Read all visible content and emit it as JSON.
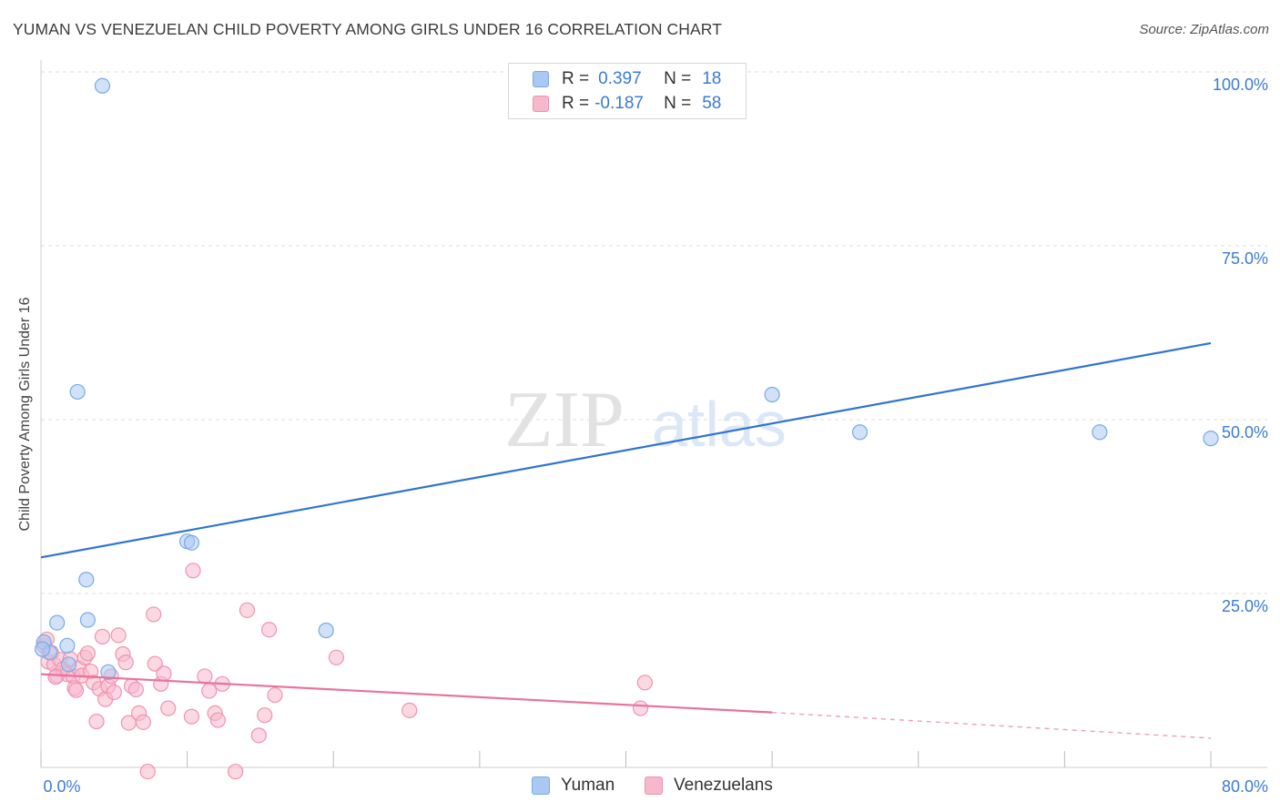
{
  "title": "YUMAN VS VENEZUELAN CHILD POVERTY AMONG GIRLS UNDER 16 CORRELATION CHART",
  "source": "Source: ZipAtlas.com",
  "watermark": {
    "zip": "ZIP",
    "atlas": "atlas"
  },
  "colors": {
    "yuman_fill": "#a9c8f2",
    "yuman_stroke": "#7aaae6",
    "yuman_line": "#2f74d0",
    "ven_fill": "#f7b8cb",
    "ven_stroke": "#ef93b1",
    "ven_line": "#e8739c",
    "tick_text": "#3a7bd5",
    "grid": "#dcdcdc"
  },
  "legend_top": {
    "rows": [
      {
        "r_label": "R =",
        "r_value": "0.397",
        "n_label": "N =",
        "n_value": "18"
      },
      {
        "r_label": "R =",
        "r_value": "-0.187",
        "n_label": "N =",
        "n_value": "58"
      }
    ]
  },
  "legend_bottom": {
    "yuman": "Yuman",
    "venezuelans": "Venezuelans"
  },
  "chart_data": {
    "type": "scatter",
    "title": "YUMAN VS VENEZUELAN CHILD POVERTY AMONG GIRLS UNDER 16 CORRELATION CHART",
    "xlabel": "",
    "ylabel": "Child Poverty Among Girls Under 16",
    "xlim": [
      0,
      80
    ],
    "ylim": [
      0,
      100
    ],
    "x_tick_labels": [
      "0.0%",
      "80.0%"
    ],
    "y_ticks": [
      25,
      50,
      75,
      100
    ],
    "y_tick_labels": [
      "25.0%",
      "50.0%",
      "75.0%",
      "100.0%"
    ],
    "grid": true,
    "series": [
      {
        "name": "Yuman",
        "points": [
          [
            4.2,
            98
          ],
          [
            2.5,
            54
          ],
          [
            3.1,
            27
          ],
          [
            10,
            32.5
          ],
          [
            10.3,
            32.3
          ],
          [
            1.1,
            20.8
          ],
          [
            3.2,
            21.2
          ],
          [
            1.8,
            17.5
          ],
          [
            0.2,
            18
          ],
          [
            0.6,
            16.5
          ],
          [
            1.9,
            14.8
          ],
          [
            4.6,
            13.7
          ],
          [
            19.5,
            19.7
          ],
          [
            50,
            53.6
          ],
          [
            56,
            48.2
          ],
          [
            72.4,
            48.2
          ],
          [
            80,
            47.3
          ],
          [
            0.1,
            17
          ]
        ],
        "trend": {
          "x": [
            0,
            80
          ],
          "y": [
            30.2,
            61
          ]
        }
      },
      {
        "name": "Venezuelans",
        "points": [
          [
            0.2,
            17.5
          ],
          [
            0.5,
            15.2
          ],
          [
            0.7,
            16.5
          ],
          [
            0.9,
            14.8
          ],
          [
            1.1,
            13.2
          ],
          [
            1.3,
            15.5
          ],
          [
            1.5,
            14.1
          ],
          [
            1.8,
            13.4
          ],
          [
            2.0,
            15.6
          ],
          [
            2.2,
            13.1
          ],
          [
            2.3,
            11.4
          ],
          [
            2.6,
            14.2
          ],
          [
            2.8,
            13.2
          ],
          [
            3.0,
            15.8
          ],
          [
            3.2,
            16.4
          ],
          [
            3.4,
            13.8
          ],
          [
            3.6,
            12.2
          ],
          [
            3.8,
            6.6
          ],
          [
            4.0,
            11.3
          ],
          [
            4.2,
            18.8
          ],
          [
            4.4,
            9.8
          ],
          [
            4.6,
            11.7
          ],
          [
            4.8,
            13.1
          ],
          [
            5.0,
            10.8
          ],
          [
            5.3,
            19.0
          ],
          [
            5.6,
            16.3
          ],
          [
            5.8,
            15.1
          ],
          [
            6.0,
            6.4
          ],
          [
            6.2,
            11.7
          ],
          [
            6.5,
            11.2
          ],
          [
            6.7,
            7.8
          ],
          [
            7.0,
            6.5
          ],
          [
            7.3,
            -0.6
          ],
          [
            7.7,
            22.0
          ],
          [
            7.8,
            14.9
          ],
          [
            8.2,
            12.0
          ],
          [
            8.4,
            13.5
          ],
          [
            8.7,
            8.5
          ],
          [
            10.4,
            28.3
          ],
          [
            10.3,
            7.3
          ],
          [
            11.2,
            13.1
          ],
          [
            11.5,
            11.0
          ],
          [
            11.9,
            7.8
          ],
          [
            12.1,
            6.8
          ],
          [
            12.4,
            12.0
          ],
          [
            13.3,
            -0.6
          ],
          [
            14.1,
            22.6
          ],
          [
            14.9,
            4.6
          ],
          [
            15.6,
            19.8
          ],
          [
            15.3,
            7.5
          ],
          [
            16.0,
            10.4
          ],
          [
            20.2,
            15.8
          ],
          [
            25.2,
            8.2
          ],
          [
            41.0,
            8.5
          ],
          [
            41.3,
            12.2
          ],
          [
            0.4,
            18.4
          ],
          [
            1.0,
            13.0
          ],
          [
            2.4,
            11.1
          ]
        ],
        "trend": {
          "x": [
            0,
            50
          ],
          "y": [
            13.4,
            7.9
          ],
          "dashed_to": {
            "x": 80,
            "y": 4.2
          }
        }
      }
    ]
  }
}
